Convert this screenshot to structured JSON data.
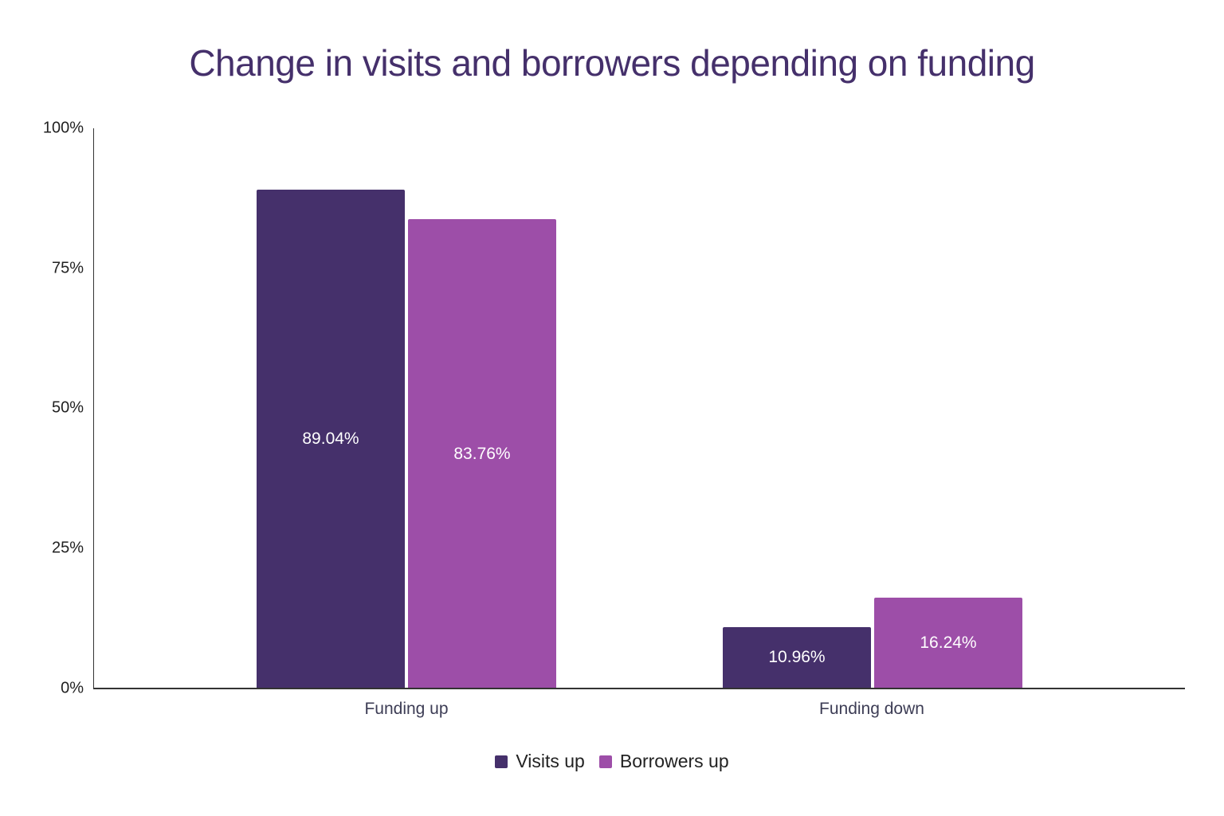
{
  "chart_data": {
    "type": "bar",
    "title": "Change in visits and borrowers depending on funding",
    "categories": [
      "Funding up",
      "Funding down"
    ],
    "series": [
      {
        "name": "Visits up",
        "values": [
          89.04,
          10.96
        ],
        "labels": [
          "89.04%",
          "10.96%"
        ],
        "color": "#45306b"
      },
      {
        "name": "Borrowers up",
        "values": [
          83.76,
          16.24
        ],
        "labels": [
          "83.76%",
          "16.24%"
        ],
        "color": "#9d4ea8"
      }
    ],
    "xlabel": "",
    "ylabel": "",
    "ylim": [
      0,
      100
    ],
    "yticks": [
      "0%",
      "25%",
      "50%",
      "75%",
      "100%"
    ],
    "grid": false,
    "legend_position": "bottom"
  }
}
